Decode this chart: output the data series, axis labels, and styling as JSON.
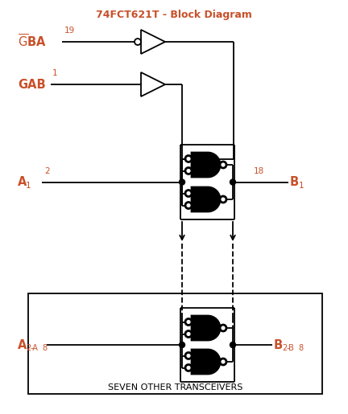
{
  "title": "74FCT621T - Block Diagram",
  "title_color": "#c8502a",
  "label_color": "#c8502a",
  "line_color": "#000000",
  "bg_color": "#ffffff",
  "fig_w": 4.32,
  "fig_h": 5.15,
  "dpi": 100,
  "gba_label": "$\\overline{\\mathrm{G}}$BA",
  "gba_pin": "19",
  "gab_label": "GAB",
  "gab_pin": "1",
  "a1_label": "A",
  "a1_sub": "1",
  "a1_pin": "2",
  "b1_label": "B",
  "b1_sub": "1",
  "b1_pin": "18",
  "a28_label": "A",
  "a28_sub": "2",
  "a28_range": "-A",
  "a28_sub2": "8",
  "b28_label": "B",
  "b28_sub": "2",
  "b28_range": "-B",
  "b28_sub2": "8",
  "box_label": "SEVEN OTHER TRANSCEIVERS"
}
